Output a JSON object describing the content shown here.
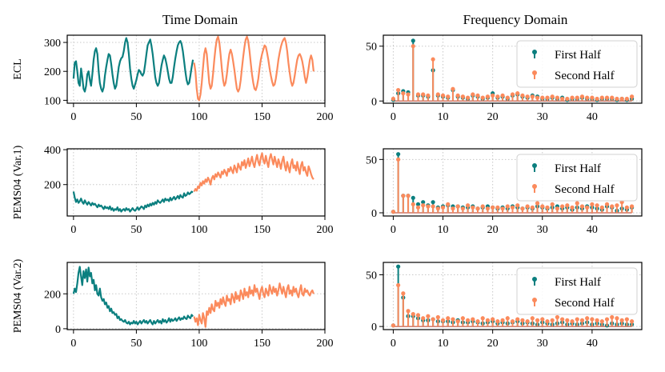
{
  "titles": {
    "left": "Time Domain",
    "right": "Frequency Domain"
  },
  "colors": {
    "first": "#0b7f7f",
    "second": "#fb8a5c",
    "grid": "#c8c8c8"
  },
  "legend": {
    "first": "First Half",
    "second": "Second Half",
    "placement": "right"
  },
  "chart_data": [
    {
      "id": "ecl-time",
      "type": "line",
      "ylabel": "ECL",
      "xlim": [
        -5,
        200
      ],
      "ylim": [
        90,
        325
      ],
      "xticks": [
        0,
        50,
        100,
        150,
        200
      ],
      "xticklabels": [
        "0",
        "50",
        "100",
        "150",
        "200"
      ],
      "yticks": [
        100,
        200,
        300
      ],
      "yticklabels": [
        "100",
        "200",
        "300"
      ],
      "series": [
        {
          "name": "First Half",
          "color": "#0b7f7f",
          "x0": 0,
          "values": [
            175,
            230,
            235,
            200,
            160,
            150,
            210,
            180,
            140,
            130,
            150,
            190,
            200,
            170,
            150,
            190,
            240,
            270,
            280,
            260,
            200,
            160,
            140,
            130,
            145,
            185,
            215,
            240,
            260,
            255,
            225,
            190,
            160,
            140,
            150,
            180,
            215,
            235,
            245,
            250,
            270,
            300,
            315,
            300,
            260,
            210,
            175,
            150,
            140,
            155,
            170,
            190,
            205,
            200,
            190,
            185,
            195,
            225,
            260,
            290,
            300,
            310,
            290,
            260,
            220,
            180,
            160,
            150,
            160,
            190,
            220,
            240,
            255,
            245,
            225,
            200,
            175,
            160,
            160,
            180,
            215,
            245,
            270,
            290,
            300,
            305,
            295,
            270,
            235,
            200,
            170,
            155,
            160,
            185,
            215,
            240
          ]
        },
        {
          "name": "Second Half",
          "color": "#fb8a5c",
          "x0": 96,
          "values": [
            230,
            200,
            140,
            105,
            100,
            120,
            160,
            210,
            260,
            280,
            260,
            210,
            160,
            140,
            150,
            190,
            240,
            280,
            310,
            320,
            300,
            260,
            210,
            170,
            150,
            160,
            190,
            230,
            260,
            275,
            260,
            235,
            205,
            170,
            140,
            130,
            140,
            170,
            210,
            250,
            285,
            310,
            320,
            305,
            270,
            230,
            190,
            160,
            140,
            135,
            150,
            175,
            210,
            240,
            260,
            275,
            290,
            285,
            265,
            240,
            210,
            185,
            165,
            150,
            155,
            175,
            205,
            240,
            265,
            285,
            300,
            310,
            315,
            300,
            270,
            230,
            195,
            165,
            150,
            160,
            185,
            215,
            240,
            255,
            260,
            250,
            235,
            210,
            180,
            160,
            180,
            210,
            240,
            255,
            240,
            200
          ]
        }
      ]
    },
    {
      "id": "ecl-freq",
      "type": "stem",
      "xlim": [
        -2,
        50
      ],
      "ylim": [
        -2,
        60
      ],
      "xticks": [
        0,
        10,
        20,
        30,
        40
      ],
      "xticklabels": [
        "0",
        "10",
        "20",
        "30",
        "40"
      ],
      "yticks": [
        0,
        50
      ],
      "yticklabels": [
        "0",
        "50"
      ],
      "series": [
        {
          "name": "First Half",
          "color": "#0b7f7f",
          "values": [
            1,
            7,
            9,
            8,
            55,
            5,
            5,
            4,
            28,
            5,
            4,
            3,
            10,
            4,
            3,
            2,
            5,
            4,
            2,
            3,
            7,
            3,
            4,
            2,
            5,
            6,
            4,
            3,
            5,
            4,
            2,
            2,
            3,
            2,
            3,
            1,
            2,
            2,
            3,
            2,
            2,
            1,
            2,
            2,
            2,
            1,
            2,
            1,
            2
          ]
        },
        {
          "name": "Second Half",
          "color": "#fb8a5c",
          "values": [
            2,
            10,
            7,
            6,
            50,
            6,
            6,
            5,
            38,
            6,
            5,
            4,
            11,
            5,
            4,
            3,
            6,
            5,
            3,
            4,
            5,
            4,
            5,
            3,
            6,
            7,
            5,
            4,
            4,
            3,
            3,
            3,
            4,
            3,
            2,
            2,
            3,
            3,
            4,
            3,
            3,
            2,
            3,
            3,
            3,
            2,
            2,
            2,
            4
          ]
        }
      ]
    },
    {
      "id": "pems1-time",
      "type": "line",
      "ylabel": "PEMS04 (Var.1)",
      "xlim": [
        -5,
        200
      ],
      "ylim": [
        20,
        405
      ],
      "xticks": [
        0,
        50,
        100,
        150,
        200
      ],
      "xticklabels": [
        "0",
        "50",
        "100",
        "150",
        "200"
      ],
      "yticks": [
        200,
        400
      ],
      "yticklabels": [
        "200",
        "400"
      ],
      "series": [
        {
          "name": "First Half",
          "color": "#0b7f7f",
          "x0": 0,
          "values": [
            160,
            125,
            100,
            115,
            95,
            105,
            120,
            100,
            90,
            110,
            95,
            85,
            100,
            90,
            80,
            95,
            85,
            90,
            80,
            70,
            85,
            75,
            80,
            70,
            60,
            75,
            65,
            70,
            60,
            75,
            55,
            65,
            50,
            60,
            55,
            70,
            50,
            60,
            45,
            55,
            60,
            50,
            65,
            55,
            60,
            45,
            55,
            65,
            55,
            50,
            60,
            70,
            55,
            65,
            75,
            70,
            60,
            80,
            70,
            85,
            75,
            90,
            80,
            95,
            85,
            100,
            90,
            110,
            100,
            95,
            105,
            115,
            100,
            120,
            110,
            115,
            105,
            125,
            110,
            120,
            130,
            115,
            125,
            135,
            120,
            140,
            130,
            125,
            150,
            135,
            140,
            155,
            145,
            150,
            160,
            155
          ]
        },
        {
          "name": "Second Half",
          "color": "#fb8a5c",
          "x0": 96,
          "values": [
            160,
            175,
            165,
            190,
            180,
            210,
            195,
            220,
            205,
            230,
            215,
            240,
            225,
            200,
            235,
            250,
            230,
            260,
            245,
            270,
            255,
            240,
            275,
            260,
            285,
            270,
            250,
            290,
            275,
            300,
            280,
            265,
            310,
            290,
            270,
            320,
            300,
            285,
            330,
            310,
            340,
            295,
            320,
            350,
            305,
            330,
            360,
            320,
            300,
            340,
            370,
            330,
            310,
            355,
            380,
            340,
            320,
            365,
            330,
            300,
            350,
            375,
            345,
            315,
            360,
            330,
            300,
            345,
            320,
            290,
            335,
            360,
            310,
            280,
            330,
            300,
            270,
            320,
            345,
            295,
            310,
            280,
            330,
            290,
            260,
            310,
            330,
            280,
            300,
            270,
            250,
            305,
            285,
            260,
            240,
            230
          ]
        }
      ]
    },
    {
      "id": "pems1-freq",
      "type": "stem",
      "xlim": [
        -2,
        50
      ],
      "ylim": [
        -3,
        60
      ],
      "xticks": [
        0,
        10,
        20,
        30,
        40
      ],
      "xticklabels": [
        "0",
        "10",
        "20",
        "30",
        "40"
      ],
      "yticks": [
        0,
        50
      ],
      "yticklabels": [
        "0",
        "50"
      ],
      "series": [
        {
          "name": "First Half",
          "color": "#0b7f7f",
          "values": [
            1,
            55,
            16,
            16,
            14,
            8,
            10,
            7,
            10,
            5,
            6,
            7,
            6,
            6,
            5,
            5,
            6,
            4,
            5,
            6,
            5,
            4,
            5,
            4,
            6,
            5,
            4,
            5,
            4,
            6,
            5,
            4,
            5,
            6,
            4,
            5,
            3,
            5,
            4,
            6,
            5,
            4,
            3,
            6,
            5,
            2,
            4,
            3,
            5
          ]
        },
        {
          "name": "Second Half",
          "color": "#fb8a5c",
          "values": [
            1,
            50,
            16,
            16,
            8,
            5,
            7,
            6,
            6,
            4,
            5,
            8,
            4,
            6,
            4,
            7,
            5,
            4,
            6,
            4,
            5,
            5,
            4,
            6,
            5,
            7,
            4,
            6,
            5,
            9,
            6,
            5,
            8,
            4,
            6,
            7,
            5,
            9,
            6,
            5,
            8,
            7,
            5,
            8,
            6,
            7,
            10,
            5,
            6
          ]
        }
      ]
    },
    {
      "id": "pems2-time",
      "type": "line",
      "ylabel": "PEMS04 (Var.2)",
      "xlim": [
        -5,
        200
      ],
      "ylim": [
        -5,
        380
      ],
      "xticks": [
        0,
        50,
        100,
        150,
        200
      ],
      "xticklabels": [
        "0",
        "50",
        "100",
        "150",
        "200"
      ],
      "yticks": [
        0,
        200
      ],
      "yticklabels": [
        "0",
        "200"
      ],
      "series": [
        {
          "name": "First Half",
          "color": "#0b7f7f",
          "x0": 0,
          "values": [
            200,
            230,
            210,
            260,
            320,
            355,
            300,
            250,
            330,
            290,
            340,
            270,
            350,
            300,
            320,
            260,
            280,
            220,
            250,
            200,
            190,
            230,
            180,
            160,
            170,
            140,
            150,
            120,
            130,
            100,
            115,
            90,
            95,
            80,
            85,
            60,
            70,
            50,
            55,
            45,
            40,
            50,
            35,
            30,
            40,
            25,
            35,
            30,
            45,
            30,
            40,
            25,
            35,
            45,
            30,
            40,
            50,
            35,
            45,
            30,
            40,
            50,
            35,
            25,
            45,
            30,
            40,
            50,
            35,
            45,
            30,
            55,
            40,
            50,
            35,
            45,
            60,
            40,
            55,
            45,
            50,
            60,
            45,
            55,
            65,
            50,
            60,
            55,
            70,
            60,
            55,
            75,
            65,
            60,
            80,
            70
          ]
        },
        {
          "name": "Second Half",
          "color": "#fb8a5c",
          "x0": 96,
          "values": [
            70,
            40,
            60,
            20,
            80,
            50,
            30,
            90,
            60,
            10,
            100,
            80,
            120,
            90,
            140,
            110,
            100,
            160,
            130,
            150,
            120,
            170,
            140,
            180,
            150,
            130,
            190,
            160,
            170,
            140,
            200,
            180,
            150,
            210,
            170,
            190,
            160,
            220,
            200,
            170,
            230,
            190,
            210,
            180,
            240,
            200,
            220,
            190,
            250,
            210,
            230,
            200,
            170,
            220,
            240,
            200,
            180,
            230,
            210,
            190,
            250,
            220,
            200,
            240,
            210,
            230,
            190,
            220,
            260,
            230,
            200,
            240,
            210,
            180,
            230,
            250,
            200,
            220,
            190,
            240,
            210,
            230,
            200,
            180,
            220,
            250,
            200,
            190,
            230,
            210,
            220,
            200,
            190,
            210,
            220,
            200
          ]
        }
      ]
    },
    {
      "id": "pems2-freq",
      "type": "stem",
      "xlim": [
        -2,
        50
      ],
      "ylim": [
        -3,
        62
      ],
      "xticks": [
        0,
        10,
        20,
        30,
        40
      ],
      "xticklabels": [
        "0",
        "10",
        "20",
        "30",
        "40"
      ],
      "yticks": [
        0,
        50
      ],
      "yticklabels": [
        "0",
        "50"
      ],
      "series": [
        {
          "name": "First Half",
          "color": "#0b7f7f",
          "values": [
            1,
            58,
            28,
            10,
            10,
            8,
            6,
            6,
            7,
            5,
            5,
            5,
            4,
            6,
            4,
            4,
            5,
            4,
            3,
            4,
            5,
            3,
            4,
            3,
            4,
            5,
            3,
            4,
            3,
            2,
            4,
            3,
            2,
            3,
            4,
            2,
            3,
            2,
            3,
            4,
            2,
            3,
            2,
            1,
            3,
            2,
            3,
            2,
            2
          ]
        },
        {
          "name": "Second Half",
          "color": "#fb8a5c",
          "values": [
            1,
            40,
            32,
            15,
            12,
            11,
            8,
            10,
            7,
            9,
            6,
            8,
            7,
            5,
            8,
            6,
            7,
            5,
            8,
            6,
            7,
            5,
            6,
            8,
            5,
            7,
            6,
            5,
            8,
            6,
            7,
            5,
            6,
            9,
            7,
            6,
            5,
            7,
            6,
            8,
            7,
            6,
            5,
            7,
            9,
            8,
            6,
            7,
            5
          ]
        }
      ]
    }
  ]
}
